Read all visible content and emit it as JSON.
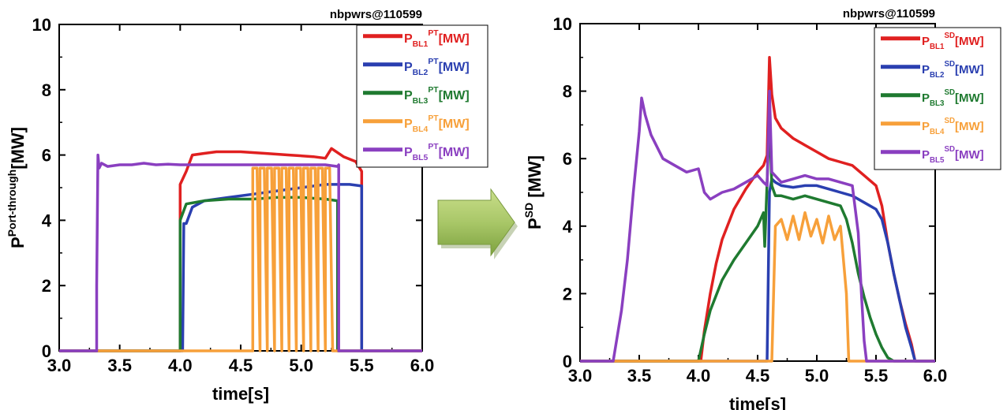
{
  "chart_data": [
    {
      "type": "line",
      "title": "nbpwrs@110599",
      "xlabel": "time[s]",
      "ylabel": {
        "base": "P",
        "sup": "Port-through",
        "unit": "[MW]"
      },
      "xlim": [
        3.0,
        6.0
      ],
      "ylim": [
        0,
        10
      ],
      "xticks": [
        "3.0",
        "3.5",
        "4.0",
        "4.5",
        "5.0",
        "5.5",
        "6.0"
      ],
      "yticks": [
        "0",
        "2",
        "4",
        "6",
        "8",
        "10"
      ],
      "legend_position": "top-right",
      "series": [
        {
          "name": "P_BL1^PT[MW]",
          "label": {
            "base": "P",
            "sub": "BL1",
            "sup": "PT",
            "unit": "[MW]"
          },
          "color": "#e02020",
          "x": [
            3.0,
            3.99,
            4.0,
            4.0,
            4.05,
            4.1,
            4.2,
            4.3,
            4.5,
            4.7,
            4.9,
            5.1,
            5.2,
            5.25,
            5.35,
            5.45,
            5.5,
            5.5,
            6.0
          ],
          "y": [
            0,
            0,
            0,
            5.1,
            5.5,
            6.0,
            6.05,
            6.1,
            6.1,
            6.05,
            6.0,
            5.95,
            5.9,
            6.2,
            5.95,
            5.8,
            5.5,
            0,
            0
          ]
        },
        {
          "name": "P_BL2^PT[MW]",
          "label": {
            "base": "P",
            "sub": "BL2",
            "sup": "PT",
            "unit": "[MW]"
          },
          "color": "#2a3fb0",
          "x": [
            3.0,
            4.01,
            4.02,
            4.03,
            4.05,
            4.1,
            4.2,
            4.4,
            4.6,
            4.8,
            5.0,
            5.2,
            5.4,
            5.5,
            5.5,
            6.0
          ],
          "y": [
            0,
            0,
            0,
            3.9,
            3.9,
            4.4,
            4.6,
            4.7,
            4.8,
            4.9,
            5.0,
            5.1,
            5.1,
            5.05,
            0,
            0
          ]
        },
        {
          "name": "P_BL3^PT[MW]",
          "label": {
            "base": "P",
            "sub": "BL3",
            "sup": "PT",
            "unit": "[MW]"
          },
          "color": "#1f7a30",
          "x": [
            3.0,
            3.99,
            4.0,
            4.0,
            4.05,
            4.2,
            4.4,
            4.6,
            4.8,
            5.0,
            5.2,
            5.3,
            5.3,
            6.0
          ],
          "y": [
            0,
            0,
            0,
            4.0,
            4.5,
            4.6,
            4.65,
            4.65,
            4.7,
            4.7,
            4.65,
            4.6,
            0,
            0
          ]
        },
        {
          "name": "P_BL4^PT[MW]",
          "label": {
            "base": "P",
            "sub": "BL4",
            "sup": "PT",
            "unit": "[MW]"
          },
          "color": "#f7a03a",
          "x": [
            3.0,
            4.6,
            4.6,
            4.635,
            4.66,
            4.66,
            4.695,
            4.72,
            4.72,
            4.755,
            4.78,
            4.78,
            4.815,
            4.84,
            4.84,
            4.875,
            4.9,
            4.9,
            4.935,
            4.96,
            4.96,
            4.995,
            5.02,
            5.02,
            5.055,
            5.08,
            5.08,
            5.115,
            5.14,
            5.14,
            5.175,
            5.2,
            5.2,
            5.235,
            5.26,
            6.0
          ],
          "y": [
            0,
            0,
            5.6,
            5.6,
            0,
            5.6,
            5.6,
            0,
            5.6,
            5.6,
            0,
            5.6,
            5.6,
            0,
            5.6,
            5.6,
            0,
            5.6,
            5.6,
            0,
            5.6,
            5.6,
            0,
            5.6,
            5.6,
            0,
            5.6,
            5.6,
            0,
            5.6,
            5.6,
            0,
            5.6,
            5.6,
            0,
            0
          ]
        },
        {
          "name": "P_BL5^PT[MW]",
          "label": {
            "base": "P",
            "sub": "BL5",
            "sup": "PT",
            "unit": "[MW]"
          },
          "color": "#8a3fc0",
          "x": [
            3.0,
            3.31,
            3.31,
            3.32,
            3.33,
            3.35,
            3.4,
            3.5,
            3.6,
            3.7,
            3.8,
            3.9,
            4.0,
            4.2,
            4.4,
            4.6,
            4.8,
            5.0,
            5.2,
            5.3,
            5.31,
            5.31,
            6.0
          ],
          "y": [
            0,
            0,
            2.0,
            6.0,
            5.6,
            5.75,
            5.65,
            5.7,
            5.7,
            5.75,
            5.7,
            5.72,
            5.7,
            5.7,
            5.7,
            5.7,
            5.7,
            5.7,
            5.7,
            5.65,
            5.7,
            0,
            0
          ]
        }
      ]
    },
    {
      "type": "line",
      "title": "nbpwrs@110599",
      "xlabel": "time[s]",
      "ylabel": {
        "base": "P",
        "sup": "SD",
        "unit": " [MW]"
      },
      "xlim": [
        3.0,
        6.0
      ],
      "ylim": [
        0,
        10
      ],
      "xticks": [
        "3.0",
        "3.5",
        "4.0",
        "4.5",
        "5.0",
        "5.5",
        "6.0"
      ],
      "yticks": [
        "0",
        "2",
        "4",
        "6",
        "8",
        "10"
      ],
      "legend_position": "top-right",
      "series": [
        {
          "name": "P_BL1^SD[MW]",
          "label": {
            "base": "P",
            "sub": "BL1",
            "sup": "SD",
            "unit": "[MW]"
          },
          "color": "#e02020",
          "x": [
            3.0,
            4.02,
            4.05,
            4.1,
            4.15,
            4.2,
            4.3,
            4.4,
            4.5,
            4.55,
            4.58,
            4.6,
            4.62,
            4.65,
            4.7,
            4.8,
            4.9,
            5.0,
            5.1,
            5.2,
            5.3,
            5.4,
            5.5,
            5.55,
            5.6,
            5.65,
            5.7,
            5.75,
            5.8,
            5.83,
            6.0
          ],
          "y": [
            0,
            0,
            0.9,
            2.0,
            2.9,
            3.6,
            4.5,
            5.1,
            5.6,
            5.8,
            6.1,
            9.0,
            7.9,
            7.2,
            6.9,
            6.6,
            6.4,
            6.2,
            6.0,
            5.9,
            5.8,
            5.5,
            5.2,
            4.6,
            3.5,
            2.6,
            1.8,
            1.1,
            0.5,
            0,
            0
          ]
        },
        {
          "name": "P_BL2^SD[MW]",
          "label": {
            "base": "P",
            "sub": "BL2",
            "sup": "SD",
            "unit": "[MW]"
          },
          "color": "#2a3fb0",
          "x": [
            3.0,
            4.58,
            4.6,
            4.62,
            4.65,
            4.7,
            4.8,
            4.9,
            5.0,
            5.1,
            5.2,
            5.3,
            5.4,
            5.5,
            5.55,
            5.6,
            5.65,
            5.7,
            5.75,
            5.8,
            5.83,
            6.0
          ],
          "y": [
            0,
            0,
            5.0,
            5.4,
            5.3,
            5.2,
            5.15,
            5.2,
            5.2,
            5.1,
            5.0,
            4.9,
            4.7,
            4.5,
            4.2,
            3.5,
            2.6,
            1.8,
            1.0,
            0.4,
            0,
            0
          ]
        },
        {
          "name": "P_BL3^SD[MW]",
          "label": {
            "base": "P",
            "sub": "BL3",
            "sup": "SD",
            "unit": "[MW]"
          },
          "color": "#1f7a30",
          "x": [
            3.0,
            4.0,
            4.05,
            4.1,
            4.2,
            4.3,
            4.4,
            4.5,
            4.55,
            4.56,
            4.6,
            4.62,
            4.65,
            4.7,
            4.8,
            4.9,
            5.0,
            5.1,
            5.2,
            5.25,
            5.3,
            5.35,
            5.4,
            5.45,
            5.5,
            5.55,
            5.6,
            5.65,
            6.0
          ],
          "y": [
            0,
            0,
            0.8,
            1.5,
            2.4,
            3.0,
            3.5,
            4.0,
            4.4,
            3.4,
            7.2,
            5.2,
            4.9,
            4.9,
            4.8,
            4.9,
            4.8,
            4.7,
            4.6,
            4.2,
            3.5,
            2.6,
            1.9,
            1.3,
            0.8,
            0.4,
            0.1,
            0,
            0
          ]
        },
        {
          "name": "P_BL4^SD[MW]",
          "label": {
            "base": "P",
            "sub": "BL4",
            "sup": "SD",
            "unit": "[MW]"
          },
          "color": "#f7a03a",
          "x": [
            3.0,
            4.62,
            4.65,
            4.7,
            4.75,
            4.8,
            4.85,
            4.9,
            4.95,
            5.0,
            5.05,
            5.1,
            5.15,
            5.2,
            5.25,
            5.27,
            6.0
          ],
          "y": [
            0,
            0,
            4.0,
            4.2,
            3.6,
            4.3,
            3.6,
            4.4,
            3.7,
            4.2,
            3.5,
            4.3,
            3.6,
            4.0,
            2.0,
            0,
            0
          ]
        },
        {
          "name": "P_BL5^SD[MW]",
          "label": {
            "base": "P",
            "sub": "BL5",
            "sup": "SD",
            "unit": "[MW]"
          },
          "color": "#8a3fc0",
          "x": [
            3.0,
            3.28,
            3.35,
            3.4,
            3.45,
            3.5,
            3.52,
            3.55,
            3.6,
            3.7,
            3.8,
            3.9,
            4.0,
            4.05,
            4.1,
            4.2,
            4.3,
            4.4,
            4.5,
            4.55,
            4.58,
            4.6,
            4.62,
            4.7,
            4.8,
            4.9,
            5.0,
            5.1,
            5.2,
            5.3,
            5.35,
            5.38,
            5.4,
            5.42,
            6.0
          ],
          "y": [
            0,
            0,
            1.5,
            3.0,
            5.0,
            6.8,
            7.8,
            7.3,
            6.7,
            6.0,
            5.8,
            5.6,
            5.7,
            5.0,
            4.8,
            5.0,
            5.1,
            5.3,
            5.5,
            5.3,
            5.2,
            8.0,
            5.6,
            5.3,
            5.4,
            5.5,
            5.4,
            5.4,
            5.3,
            5.2,
            3.8,
            1.8,
            0.6,
            0,
            0
          ]
        }
      ]
    }
  ]
}
